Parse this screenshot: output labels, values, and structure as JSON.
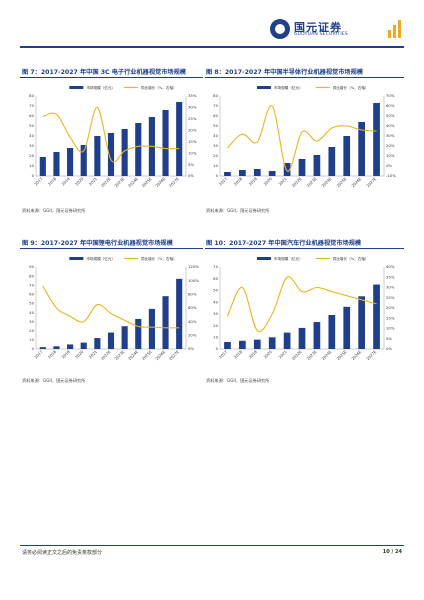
{
  "header": {
    "logo_cn": "国元证券",
    "logo_en": "GUOYUAN SECURITIES",
    "brand_color": "#1f3f8a",
    "accent_color": "#f2a81d"
  },
  "figures": [
    {
      "title": "图 7：2017-2027 年中国 3C 电子行业机器视觉市场规模",
      "source": "资料来源：GGII，国元证券研究所"
    },
    {
      "title": "图 8：2017-2027 年中国半导体行业机器视觉市场规模",
      "source": "资料来源：GGII，国元证券研究所"
    },
    {
      "title": "图 9：2017-2027 年中国锂电行业机器视觉市场规模",
      "source": "资料来源：GGII，国元证券研究所"
    },
    {
      "title": "图 10：2017-2027 年中国汽车行业机器视觉市场规模",
      "source": "资料来源：GGII，国元证券研究所"
    }
  ],
  "chart_data": [
    {
      "type": "bar",
      "categories": [
        "2017",
        "2018",
        "2019",
        "2020",
        "2021",
        "2022E",
        "2023E",
        "2024E",
        "2025E",
        "2026E",
        "2027E"
      ],
      "series": [
        {
          "name": "市场规模（亿元）",
          "type": "bar",
          "axis": "left",
          "color": "#1f3f8a",
          "values": [
            19,
            24,
            28,
            31,
            40,
            43,
            47,
            53,
            59,
            66,
            74
          ]
        },
        {
          "name": "同比增长（%，右轴）",
          "type": "line",
          "axis": "right",
          "color": "#e8b423",
          "values": [
            26,
            27,
            17,
            11,
            30,
            7,
            11,
            13,
            13,
            12,
            12
          ]
        }
      ],
      "ylim_left": [
        0,
        80
      ],
      "yticks_left": [
        "0",
        "10",
        "20",
        "30",
        "40",
        "50",
        "60",
        "70",
        "80"
      ],
      "ylim_right": [
        0,
        35
      ],
      "yticks_right": [
        "0%",
        "5%",
        "10%",
        "15%",
        "20%",
        "25%",
        "30%",
        "35%"
      ],
      "legend_position": "top"
    },
    {
      "type": "bar",
      "categories": [
        "2017",
        "2018",
        "2019",
        "2020",
        "2021",
        "2022E",
        "2023E",
        "2024E",
        "2025E",
        "2026E",
        "2027E"
      ],
      "series": [
        {
          "name": "市场规模（亿元）",
          "type": "bar",
          "axis": "left",
          "color": "#1f3f8a",
          "values": [
            4,
            6,
            7,
            5,
            13,
            17,
            21,
            29,
            40,
            54,
            73
          ]
        },
        {
          "name": "同比增长（%，右轴）",
          "type": "line",
          "axis": "right",
          "color": "#e8b423",
          "values": [
            18,
            32,
            24,
            60,
            -5,
            34,
            25,
            38,
            40,
            36,
            35
          ]
        }
      ],
      "ylim_left": [
        0,
        80
      ],
      "yticks_left": [
        "0",
        "10",
        "20",
        "30",
        "40",
        "50",
        "60",
        "70",
        "80"
      ],
      "ylim_right": [
        -10,
        70
      ],
      "yticks_right": [
        "-10%",
        "0%",
        "10%",
        "20%",
        "30%",
        "40%",
        "50%",
        "60%",
        "70%"
      ],
      "legend_position": "top"
    },
    {
      "type": "bar",
      "categories": [
        "2017",
        "2018",
        "2019",
        "2020",
        "2021",
        "2022E",
        "2023E",
        "2024E",
        "2025E",
        "2026E",
        "2027E"
      ],
      "series": [
        {
          "name": "市场规模（亿元）",
          "type": "bar",
          "axis": "left",
          "color": "#1f3f8a",
          "values": [
            2,
            3,
            5,
            7,
            12,
            18,
            25,
            33,
            44,
            58,
            77
          ]
        },
        {
          "name": "同比增长（%，右轴）",
          "type": "line",
          "axis": "right",
          "color": "#e8b423",
          "values": [
            92,
            60,
            48,
            40,
            65,
            52,
            42,
            33,
            32,
            31,
            31
          ]
        }
      ],
      "ylim_left": [
        0,
        90
      ],
      "yticks_left": [
        "0",
        "10",
        "20",
        "30",
        "40",
        "50",
        "60",
        "70",
        "80",
        "90"
      ],
      "ylim_right": [
        0,
        120
      ],
      "yticks_right": [
        "0%",
        "20%",
        "40%",
        "60%",
        "80%",
        "100%",
        "120%"
      ],
      "legend_position": "top"
    },
    {
      "type": "bar",
      "categories": [
        "2017",
        "2018",
        "2019",
        "2020",
        "2021",
        "2022E",
        "2023E",
        "2024E",
        "2025E",
        "2026E",
        "2027E"
      ],
      "series": [
        {
          "name": "市场规模（亿元）",
          "type": "bar",
          "axis": "left",
          "color": "#1f3f8a",
          "values": [
            6,
            7,
            8,
            10,
            14,
            18,
            23,
            29,
            36,
            45,
            55
          ]
        },
        {
          "name": "同比增长（%，右轴）",
          "type": "line",
          "axis": "right",
          "color": "#e8b423",
          "values": [
            16,
            30,
            9,
            17,
            35,
            28,
            30,
            28,
            26,
            24,
            22
          ]
        }
      ],
      "ylim_left": [
        0,
        70
      ],
      "yticks_left": [
        "0",
        "10",
        "20",
        "30",
        "40",
        "50",
        "60",
        "70"
      ],
      "ylim_right": [
        0,
        40
      ],
      "yticks_right": [
        "0%",
        "5%",
        "10%",
        "15%",
        "20%",
        "25%",
        "30%",
        "35%",
        "40%"
      ],
      "legend_position": "top"
    }
  ],
  "footer": {
    "disclaimer": "请务必阅读正文之后的免责条款部分",
    "page": "10 / 24"
  }
}
